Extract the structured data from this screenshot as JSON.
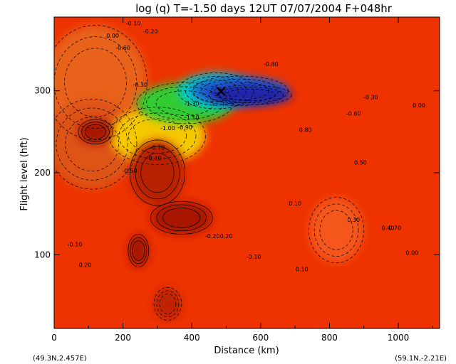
{
  "chart_data": {
    "type": "contour",
    "title": "log (q)   T=-1.50 days   12UT 07/07/2004  F+048hr",
    "xlabel": "Distance  (km)",
    "ylabel": "Flight level  (hft)",
    "xlim": [
      0,
      1120
    ],
    "ylim": [
      10,
      390
    ],
    "x_ticks": [
      0,
      200,
      400,
      600,
      800,
      1000
    ],
    "x_tick_labels": [
      "0",
      "200",
      "400",
      "600",
      "800",
      "1000"
    ],
    "y_ticks": [
      100,
      200,
      300
    ],
    "y_tick_labels": [
      "100",
      "200",
      "300"
    ],
    "left_endpoint": "(49.3N,2.457E)",
    "right_endpoint": "(59.1N,-2.21E)",
    "marker": {
      "symbol": "×",
      "x": 485,
      "y": 300
    },
    "background_color": "#ee3300",
    "regions": [
      {
        "name": "orange-upper-left",
        "color": "#e8621a",
        "center": [
          120,
          310
        ],
        "radius": [
          150,
          70
        ]
      },
      {
        "name": "orange-left",
        "color": "#de5216",
        "center": [
          110,
          235
        ],
        "radius": [
          130,
          55
        ]
      },
      {
        "name": "yellow-band",
        "color": "#f5c800",
        "center": [
          300,
          245
        ],
        "radius": [
          140,
          35
        ]
      },
      {
        "name": "green-moist-layer",
        "color": "#33cc33",
        "center": [
          380,
          285
        ],
        "radius": [
          140,
          25
        ]
      },
      {
        "name": "cyan-moist-layer",
        "color": "#00c8c8",
        "center": [
          470,
          300
        ],
        "radius": [
          110,
          22
        ]
      },
      {
        "name": "blue-moist-core",
        "color": "#1f5fcf",
        "center": [
          540,
          300
        ],
        "radius": [
          140,
          18
        ]
      },
      {
        "name": "dark-blue-core",
        "color": "#2020a8",
        "center": [
          570,
          295
        ],
        "radius": [
          120,
          12
        ]
      },
      {
        "name": "dark-red-blob-1",
        "color": "#b82000",
        "center": [
          300,
          200
        ],
        "radius": [
          80,
          40
        ]
      },
      {
        "name": "dark-red-blob-2",
        "color": "#a81800",
        "center": [
          370,
          145
        ],
        "radius": [
          90,
          20
        ]
      },
      {
        "name": "dark-red-blob-3",
        "color": "#a81800",
        "center": [
          245,
          105
        ],
        "radius": [
          30,
          20
        ]
      },
      {
        "name": "dark-red-blob-4",
        "color": "#a81800",
        "center": [
          120,
          250
        ],
        "radius": [
          50,
          15
        ]
      },
      {
        "name": "dark-red-blob-5",
        "color": "#c02000",
        "center": [
          330,
          40
        ],
        "radius": [
          40,
          20
        ]
      },
      {
        "name": "light-orange-patches",
        "color": "#f4561f",
        "center": [
          820,
          130
        ],
        "radius": [
          80,
          40
        ]
      }
    ],
    "contour_labels": [
      {
        "text": "-1.30",
        "x": 400,
        "y": 282
      },
      {
        "text": "-1.10",
        "x": 400,
        "y": 265
      },
      {
        "text": "-1.00",
        "x": 330,
        "y": 252
      },
      {
        "text": "-0.90",
        "x": 380,
        "y": 253
      },
      {
        "text": "-0.80",
        "x": 630,
        "y": 330
      },
      {
        "text": "-0.70",
        "x": 300,
        "y": 228
      },
      {
        "text": "-0.60",
        "x": 200,
        "y": 350
      },
      {
        "text": "-0.60",
        "x": 870,
        "y": 270
      },
      {
        "text": "-0.50",
        "x": 220,
        "y": 200
      },
      {
        "text": "-0.40",
        "x": 290,
        "y": 215
      },
      {
        "text": "-0.30",
        "x": 250,
        "y": 305
      },
      {
        "text": "-0.30",
        "x": 920,
        "y": 290
      },
      {
        "text": "-0.20",
        "x": 280,
        "y": 370
      },
      {
        "text": "-0.20",
        "x": 460,
        "y": 120
      },
      {
        "text": "-0.10",
        "x": 230,
        "y": 380
      },
      {
        "text": "-0.10",
        "x": 60,
        "y": 110
      },
      {
        "text": "-0.10",
        "x": 580,
        "y": 95
      },
      {
        "text": "0.00",
        "x": 170,
        "y": 365
      },
      {
        "text": "0.00",
        "x": 1040,
        "y": 100
      },
      {
        "text": "0.00",
        "x": 1060,
        "y": 280
      },
      {
        "text": "0.10",
        "x": 700,
        "y": 160
      },
      {
        "text": "0.10",
        "x": 720,
        "y": 80
      },
      {
        "text": "0.20",
        "x": 500,
        "y": 120
      },
      {
        "text": "0.20",
        "x": 90,
        "y": 85
      },
      {
        "text": "0.30",
        "x": 870,
        "y": 140
      },
      {
        "text": "0.40",
        "x": 970,
        "y": 130
      },
      {
        "text": "0.50",
        "x": 890,
        "y": 210
      },
      {
        "text": "0.70",
        "x": 990,
        "y": 130
      },
      {
        "text": "0.80",
        "x": 730,
        "y": 250
      }
    ]
  }
}
